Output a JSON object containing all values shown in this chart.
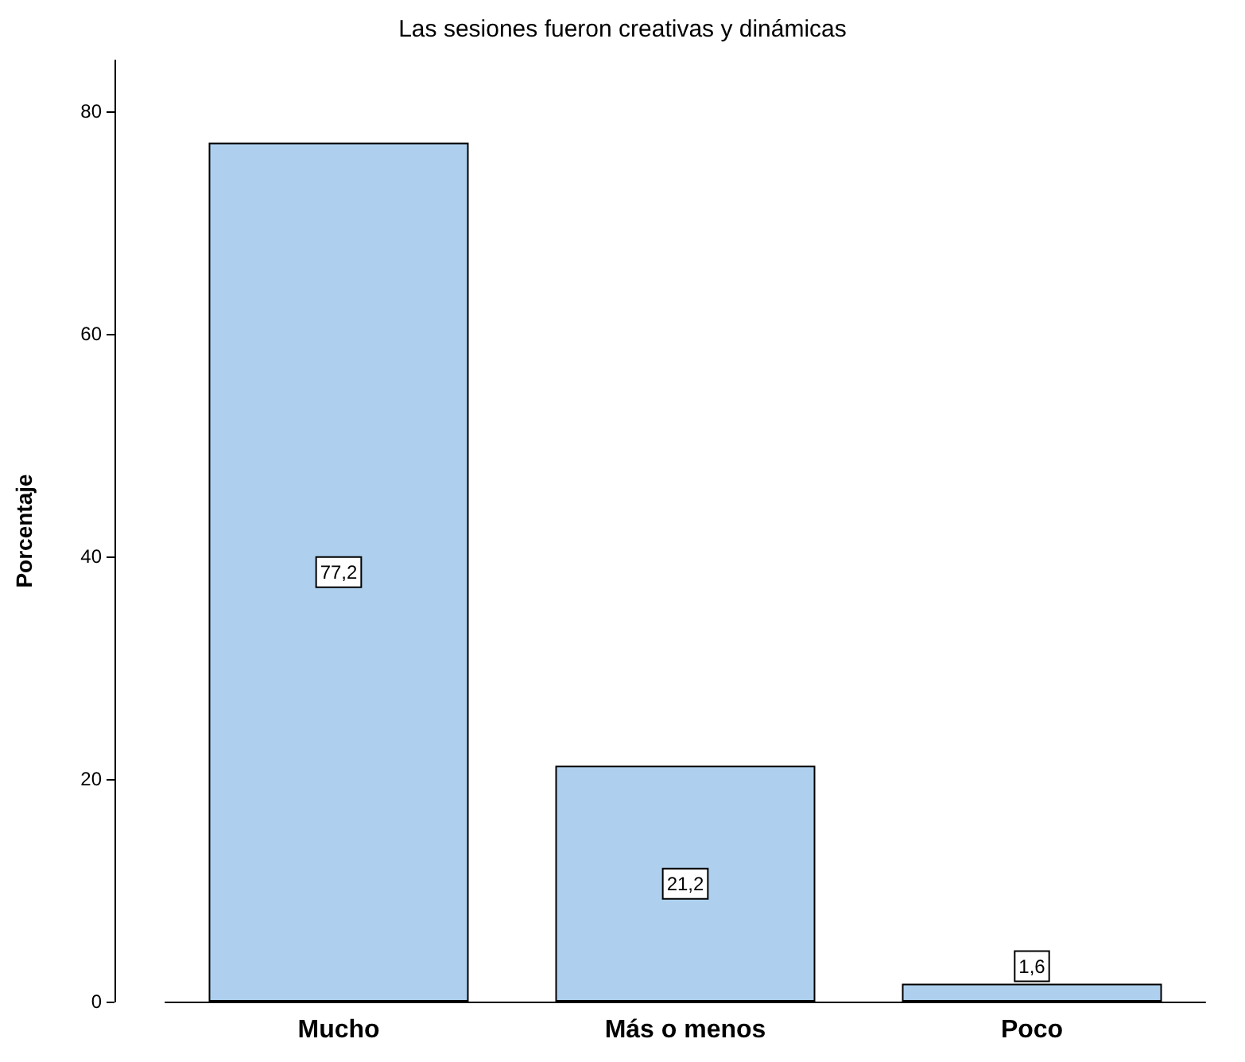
{
  "chart_data": {
    "type": "bar",
    "title": "Las sesiones fueron creativas y dinámicas",
    "ylabel": "Porcentaje",
    "categories": [
      "Mucho",
      "Más o menos",
      "Poco"
    ],
    "values": [
      77.2,
      21.2,
      1.6
    ],
    "value_labels": [
      "77,2",
      "21,2",
      "1,6"
    ],
    "color": "#aed0ee",
    "ylim": [
      0,
      84.6
    ],
    "yticks": [
      0,
      20,
      40,
      60,
      80
    ],
    "grid": false
  }
}
